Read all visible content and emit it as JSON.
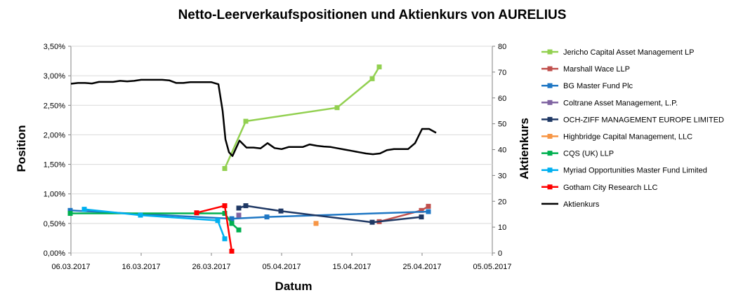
{
  "chart_data": {
    "type": "line",
    "title": "Netto-Leerverkaufspositionen und Aktienkurs von AURELIUS",
    "xlabel": "Datum",
    "ylabel": "Position",
    "y2label": "Aktienkurs",
    "x_ticks": [
      {
        "label": "06.03.2017",
        "day": 0
      },
      {
        "label": "16.03.2017",
        "day": 10
      },
      {
        "label": "26.03.2017",
        "day": 20
      },
      {
        "label": "05.04.2017",
        "day": 30
      },
      {
        "label": "15.04.2017",
        "day": 40
      },
      {
        "label": "25.04.2017",
        "day": 50
      },
      {
        "label": "05.05.2017",
        "day": 60
      }
    ],
    "xlim": [
      0,
      60
    ],
    "ylim": [
      0,
      3.5
    ],
    "y_ticks": [
      "0,00%",
      "0,50%",
      "1,00%",
      "1,50%",
      "2,00%",
      "2,50%",
      "3,00%",
      "3,50%"
    ],
    "y2lim": [
      0,
      80
    ],
    "y2_ticks": [
      "0",
      "10",
      "20",
      "30",
      "40",
      "50",
      "60",
      "70",
      "80"
    ],
    "legend_position": "right",
    "series": [
      {
        "name": "Jericho Capital Asset Management LP",
        "color": "#92D050",
        "axis": "left",
        "points": [
          [
            21.9,
            1.43
          ],
          [
            24.9,
            2.23
          ],
          [
            37.9,
            2.46
          ],
          [
            42.9,
            2.95
          ],
          [
            43.9,
            3.15
          ]
        ]
      },
      {
        "name": "Marshall Wace LLP",
        "color": "#C0504D",
        "axis": "left",
        "points": [
          [
            43.9,
            0.53
          ],
          [
            49.9,
            0.72
          ],
          [
            50.9,
            0.79
          ]
        ]
      },
      {
        "name": "BG Master Fund Plc",
        "color": "#1F77C4",
        "axis": "left",
        "points": [
          [
            -0.1,
            0.72
          ],
          [
            22.9,
            0.58
          ],
          [
            27.9,
            0.61
          ],
          [
            50.9,
            0.7
          ]
        ]
      },
      {
        "name": "Coltrane Asset Management, L.P.",
        "color": "#8064A2",
        "axis": "left",
        "points": [
          [
            23.9,
            0.64
          ]
        ]
      },
      {
        "name": "OCH-ZIFF MANAGEMENT EUROPE LIMITED",
        "color": "#1F3864",
        "axis": "left",
        "points": [
          [
            23.9,
            0.76
          ],
          [
            24.9,
            0.8
          ],
          [
            29.9,
            0.71
          ],
          [
            42.9,
            0.52
          ],
          [
            49.9,
            0.61
          ]
        ]
      },
      {
        "name": "Highbridge Capital Management, LLC",
        "color": "#F79646",
        "axis": "left",
        "points": [
          [
            34.9,
            0.5
          ]
        ]
      },
      {
        "name": "CQS (UK) LLP",
        "color": "#00B050",
        "axis": "left",
        "points": [
          [
            -0.1,
            0.67
          ],
          [
            21.9,
            0.67
          ],
          [
            22.9,
            0.5
          ],
          [
            23.9,
            0.39
          ]
        ]
      },
      {
        "name": "Myriad Opportunities Master Fund Limited",
        "color": "#00B0F0",
        "axis": "left",
        "points": [
          [
            1.9,
            0.74
          ],
          [
            9.9,
            0.64
          ],
          [
            20.9,
            0.55
          ],
          [
            21.9,
            0.24
          ]
        ]
      },
      {
        "name": "Gotham City Research LLC",
        "color": "#FF0000",
        "axis": "left",
        "points": [
          [
            17.9,
            0.68
          ],
          [
            21.9,
            0.8
          ],
          [
            22.9,
            0.03
          ]
        ]
      },
      {
        "name": "Aktienkurs",
        "color": "#000000",
        "axis": "right",
        "points": [
          [
            0,
            65.5
          ],
          [
            1,
            65.8
          ],
          [
            2,
            65.8
          ],
          [
            3,
            65.6
          ],
          [
            4,
            66.2
          ],
          [
            5,
            66.2
          ],
          [
            6,
            66.2
          ],
          [
            7,
            66.6
          ],
          [
            8,
            66.4
          ],
          [
            9,
            66.6
          ],
          [
            10,
            67
          ],
          [
            11,
            67
          ],
          [
            12,
            67
          ],
          [
            13,
            67
          ],
          [
            14,
            66.8
          ],
          [
            15,
            65.8
          ],
          [
            16,
            65.8
          ],
          [
            17,
            66.1
          ],
          [
            18,
            66.1
          ],
          [
            19,
            66.1
          ],
          [
            20,
            66.1
          ],
          [
            21,
            65.3
          ],
          [
            21.6,
            55
          ],
          [
            22,
            44
          ],
          [
            22.5,
            39
          ],
          [
            23,
            37.5
          ],
          [
            24,
            43.5
          ],
          [
            25,
            40.8
          ],
          [
            26,
            40.8
          ],
          [
            27,
            40.5
          ],
          [
            28,
            42.5
          ],
          [
            29,
            40.6
          ],
          [
            30,
            40.2
          ],
          [
            31,
            41
          ],
          [
            32,
            41
          ],
          [
            33,
            41
          ],
          [
            34,
            42
          ],
          [
            35,
            41.5
          ],
          [
            36,
            41.2
          ],
          [
            37,
            41
          ],
          [
            38,
            40.5
          ],
          [
            39,
            40
          ],
          [
            40,
            39.5
          ],
          [
            41,
            39
          ],
          [
            42,
            38.5
          ],
          [
            43,
            38.2
          ],
          [
            44,
            38.5
          ],
          [
            45,
            39.8
          ],
          [
            46,
            40.2
          ],
          [
            47,
            40.2
          ],
          [
            48,
            40.2
          ],
          [
            49,
            42.5
          ],
          [
            50,
            48
          ],
          [
            51,
            48
          ],
          [
            52,
            46.5
          ]
        ]
      }
    ]
  }
}
